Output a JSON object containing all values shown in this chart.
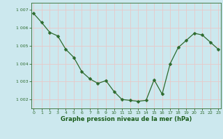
{
  "x": [
    0,
    1,
    2,
    3,
    4,
    5,
    6,
    7,
    8,
    9,
    10,
    11,
    12,
    13,
    14,
    15,
    16,
    17,
    18,
    19,
    20,
    21,
    22,
    23
  ],
  "y": [
    1006.8,
    1006.3,
    1005.75,
    1005.55,
    1004.8,
    1004.35,
    1003.55,
    1003.15,
    1002.9,
    1003.05,
    1002.45,
    1002.0,
    1001.95,
    1001.9,
    1001.95,
    1003.1,
    1002.3,
    1004.0,
    1004.9,
    1005.3,
    1005.7,
    1005.6,
    1005.2,
    1004.8
  ],
  "line_color": "#2d6a2d",
  "marker": "D",
  "marker_size": 2.5,
  "bg_color": "#cce8ee",
  "grid_color": "#e8c8c8",
  "xlabel": "Graphe pression niveau de la mer (hPa)",
  "xlabel_color": "#1a5c1a",
  "tick_color": "#2d6a2d",
  "spine_color": "#2d6a2d",
  "ylim": [
    1001.5,
    1007.4
  ],
  "yticks": [
    1002,
    1003,
    1004,
    1005,
    1006,
    1007
  ],
  "ytick_labels": [
    "1 002",
    "1 003",
    "1 004",
    "1 005",
    "1 006",
    "1 007"
  ],
  "xticks": [
    0,
    1,
    2,
    3,
    4,
    5,
    6,
    7,
    8,
    9,
    10,
    11,
    12,
    13,
    14,
    15,
    16,
    17,
    18,
    19,
    20,
    21,
    22,
    23
  ],
  "figsize": [
    3.2,
    2.0
  ],
  "dpi": 100
}
